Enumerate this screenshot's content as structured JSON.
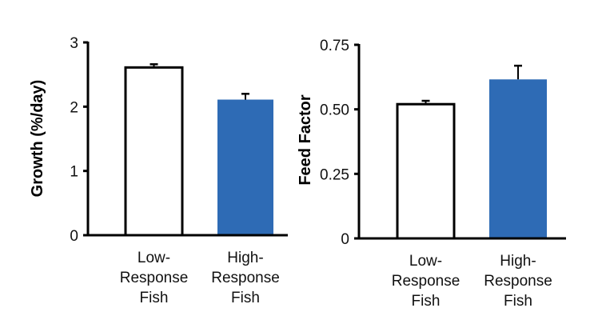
{
  "chart_data": [
    {
      "type": "bar",
      "categories": [
        [
          "Low-",
          "Response",
          "Fish"
        ],
        [
          "High-",
          "Response",
          "Fish"
        ]
      ],
      "values": [
        2.61,
        2.11
      ],
      "error_upper": [
        2.66,
        2.2
      ],
      "colors": [
        "#ffffff",
        "#2e6bb5"
      ],
      "xlabel": "",
      "ylabel": "Growth (%/day)",
      "ylim": [
        0,
        3
      ],
      "yticks": [
        0,
        1,
        2,
        3
      ],
      "ytick_labels": [
        "0",
        "1",
        "2",
        "3"
      ],
      "grid": false
    },
    {
      "type": "bar",
      "categories": [
        [
          "Low-",
          "Response",
          "Fish"
        ],
        [
          "High-",
          "Response",
          "Fish"
        ]
      ],
      "values": [
        0.52,
        0.616
      ],
      "error_upper": [
        0.533,
        0.669
      ],
      "colors": [
        "#ffffff",
        "#2e6bb5"
      ],
      "xlabel": "",
      "ylabel": "Feed Factor",
      "ylim": [
        0,
        0.75
      ],
      "yticks": [
        0,
        0.25,
        0.5,
        0.75
      ],
      "ytick_labels": [
        "0",
        "0.25",
        "0.50",
        "0.75"
      ],
      "grid": false
    }
  ]
}
